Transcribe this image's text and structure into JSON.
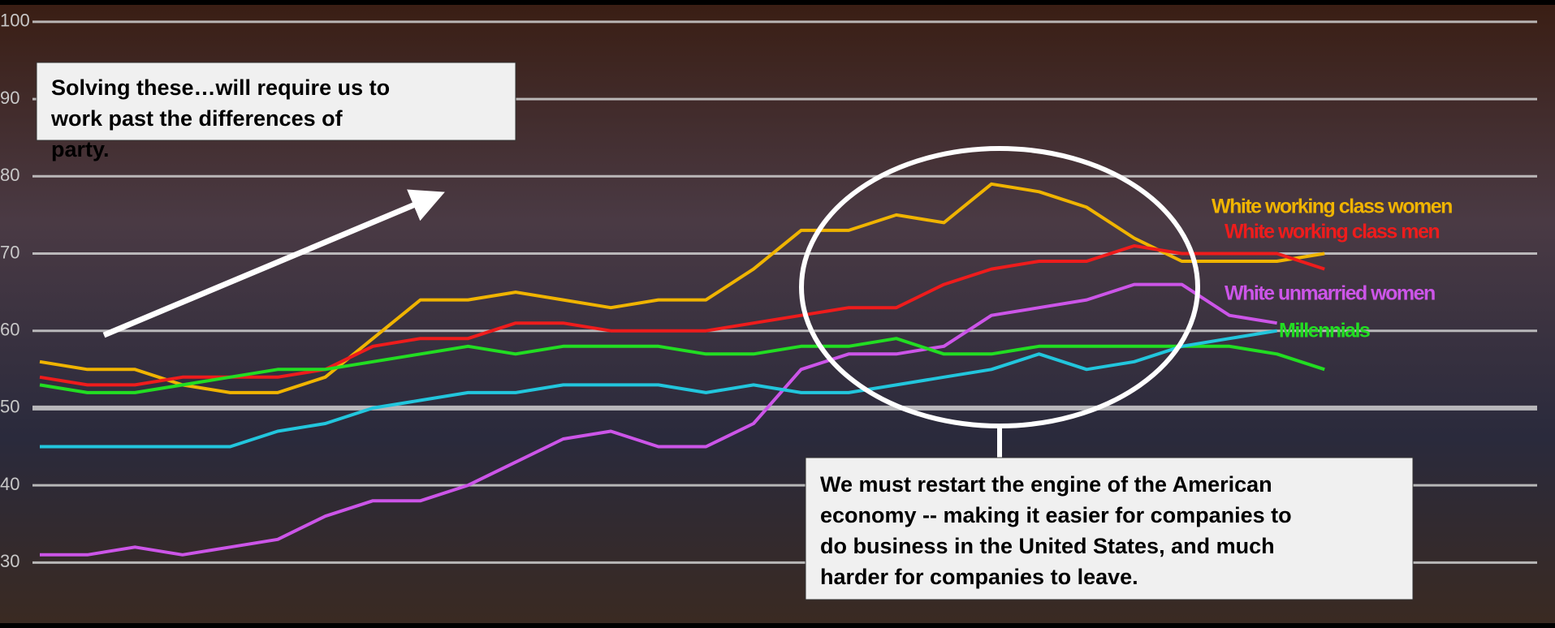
{
  "chart_data": {
    "type": "line",
    "categories": [
      null,
      null,
      null,
      null,
      null,
      null,
      null,
      null,
      null,
      null,
      null,
      null,
      null,
      null,
      null,
      null,
      null,
      null,
      null,
      null,
      null,
      null,
      null,
      null,
      null,
      null,
      null,
      null
    ],
    "series": [
      {
        "name": "White working class women",
        "color": "#f0b400",
        "values": [
          56,
          55,
          55,
          53,
          52,
          52,
          54,
          59,
          64,
          64,
          65,
          64,
          63,
          64,
          64,
          68,
          73,
          73,
          75,
          74,
          79,
          78,
          76,
          72,
          69,
          69,
          69,
          70
        ]
      },
      {
        "name": "White working class men",
        "color": "#ee1c1c",
        "values": [
          54,
          53,
          53,
          54,
          54,
          54,
          55,
          58,
          59,
          59,
          61,
          61,
          60,
          60,
          60,
          61,
          62,
          63,
          63,
          66,
          68,
          69,
          69,
          71,
          70,
          70,
          70,
          68
        ]
      },
      {
        "name": "White unmarried women",
        "color": "#cc55e8",
        "values": [
          31,
          31,
          32,
          31,
          32,
          33,
          36,
          38,
          38,
          40,
          43,
          46,
          47,
          45,
          45,
          48,
          55,
          57,
          57,
          58,
          62,
          63,
          64,
          66,
          66,
          62,
          61,
          null
        ]
      },
      {
        "name": "Millennials",
        "color": "#22dd22",
        "values": [
          53,
          52,
          52,
          53,
          54,
          55,
          55,
          56,
          57,
          58,
          57,
          58,
          58,
          58,
          57,
          57,
          58,
          58,
          59,
          57,
          57,
          58,
          58,
          58,
          58,
          58,
          57,
          55
        ]
      },
      {
        "name": "",
        "color": "#22c6dd",
        "values": [
          45,
          45,
          45,
          45,
          45,
          47,
          48,
          50,
          51,
          52,
          52,
          53,
          53,
          53,
          52,
          53,
          52,
          52,
          53,
          54,
          55,
          57,
          55,
          56,
          58,
          59,
          60,
          null
        ]
      }
    ],
    "ylim": [
      23,
      101.5
    ],
    "yticks": [
      30,
      40,
      50,
      60,
      70,
      80,
      90,
      100
    ],
    "grid": true,
    "annotations": [
      "Solving these…will require us to work past the differences of party.",
      "We must restart the engine of the American economy -- making it easier for companies to do business in the United States, and much harder for companies to leave."
    ]
  }
}
